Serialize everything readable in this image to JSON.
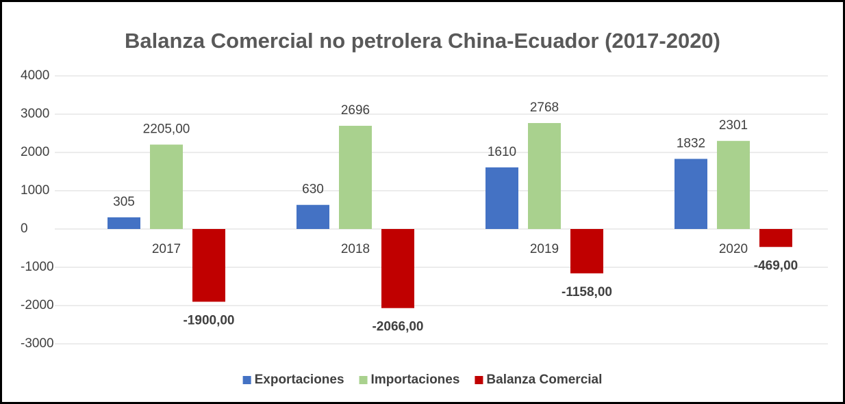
{
  "chart_data": {
    "type": "bar",
    "title": "Balanza Comercial no petrolera China-Ecuador (2017-2020)",
    "categories": [
      "2017",
      "2018",
      "2019",
      "2020"
    ],
    "series": [
      {
        "name": "Exportaciones",
        "color": "#4472c4",
        "values": [
          305,
          630,
          1610,
          1832
        ]
      },
      {
        "name": "Importaciones",
        "color": "#a9d18e",
        "values": [
          2205,
          2696,
          2768,
          2301
        ],
        "value_labels": [
          "2205,00",
          "2696",
          "2768",
          "2301"
        ]
      },
      {
        "name": "Balanza Comercial",
        "color": "#c00000",
        "values": [
          -1900,
          -2066,
          -1158,
          -469
        ],
        "value_labels": [
          "-1900,00",
          "-2066,00",
          "-1158,00",
          "-469,00"
        ]
      }
    ],
    "ylim": [
      -3000,
      4000
    ],
    "yticks": [
      -3000,
      -2000,
      -1000,
      0,
      1000,
      2000,
      3000,
      4000
    ],
    "grid": true,
    "legend": "bottom"
  }
}
